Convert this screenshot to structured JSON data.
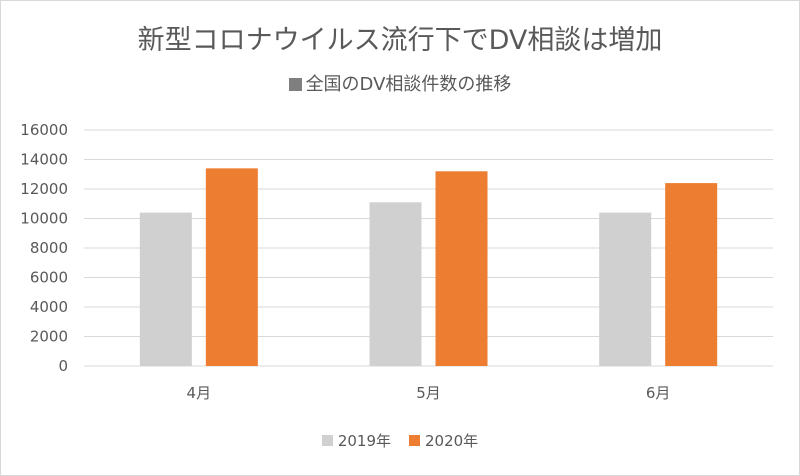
{
  "chart_data": {
    "type": "bar",
    "title": "新型コロナウイルス流行下でDV相談は増加",
    "subtitle": "全国のDV相談件数の推移",
    "subtitle_marker_color": "#7f7f7f",
    "categories": [
      "4月",
      "5月",
      "6月"
    ],
    "series": [
      {
        "name": "2019年",
        "values": [
          10400,
          11100,
          10400
        ],
        "color": "#d0d0d0"
      },
      {
        "name": "2020年",
        "values": [
          13400,
          13200,
          12400
        ],
        "color": "#ed7d31"
      }
    ],
    "yticks": [
      "0",
      "2000",
      "4000",
      "6000",
      "8000",
      "10000",
      "12000",
      "14000",
      "16000"
    ],
    "ylim": [
      0,
      16000
    ],
    "grid": true,
    "legend": "bottom",
    "xlabel": "",
    "ylabel": ""
  }
}
